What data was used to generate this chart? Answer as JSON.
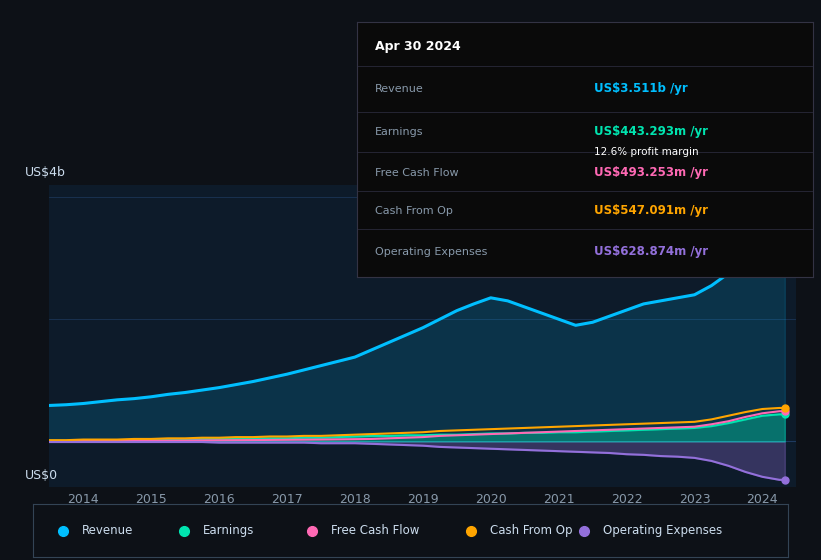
{
  "bg_color": "#0d1117",
  "plot_bg_color": "#0d1b2a",
  "years": [
    2013.33,
    2013.75,
    2014.0,
    2014.25,
    2014.5,
    2014.75,
    2015.0,
    2015.25,
    2015.5,
    2015.75,
    2016.0,
    2016.25,
    2016.5,
    2016.75,
    2017.0,
    2017.25,
    2017.5,
    2017.75,
    2018.0,
    2018.25,
    2018.5,
    2018.75,
    2019.0,
    2019.25,
    2019.5,
    2019.75,
    2020.0,
    2020.25,
    2020.5,
    2020.75,
    2021.0,
    2021.25,
    2021.5,
    2021.75,
    2022.0,
    2022.25,
    2022.5,
    2022.75,
    2023.0,
    2023.25,
    2023.5,
    2023.75,
    2024.0,
    2024.25,
    2024.33
  ],
  "revenue": [
    0.58,
    0.6,
    0.62,
    0.65,
    0.68,
    0.7,
    0.73,
    0.77,
    0.8,
    0.84,
    0.88,
    0.93,
    0.98,
    1.04,
    1.1,
    1.17,
    1.24,
    1.31,
    1.38,
    1.5,
    1.62,
    1.74,
    1.86,
    2.0,
    2.14,
    2.25,
    2.35,
    2.3,
    2.2,
    2.1,
    2.0,
    1.9,
    1.95,
    2.05,
    2.15,
    2.25,
    2.3,
    2.35,
    2.4,
    2.55,
    2.75,
    3.0,
    3.3,
    3.511,
    3.511
  ],
  "earnings": [
    0.01,
    0.01,
    0.02,
    0.02,
    0.02,
    0.02,
    0.03,
    0.03,
    0.03,
    0.04,
    0.04,
    0.04,
    0.05,
    0.05,
    0.05,
    0.06,
    0.06,
    0.07,
    0.08,
    0.09,
    0.09,
    0.1,
    0.1,
    0.11,
    0.11,
    0.12,
    0.13,
    0.13,
    0.14,
    0.14,
    0.15,
    0.15,
    0.16,
    0.17,
    0.18,
    0.19,
    0.2,
    0.21,
    0.22,
    0.25,
    0.3,
    0.36,
    0.42,
    0.4433,
    0.4433
  ],
  "free_cash_flow": [
    0.005,
    0.006,
    0.007,
    0.008,
    0.009,
    0.01,
    0.012,
    0.013,
    0.014,
    0.016,
    0.018,
    0.02,
    0.022,
    0.024,
    0.026,
    0.028,
    0.03,
    0.033,
    0.036,
    0.04,
    0.05,
    0.06,
    0.07,
    0.09,
    0.1,
    0.11,
    0.12,
    0.13,
    0.14,
    0.15,
    0.16,
    0.17,
    0.18,
    0.19,
    0.2,
    0.21,
    0.22,
    0.23,
    0.24,
    0.28,
    0.33,
    0.4,
    0.46,
    0.4933,
    0.4933
  ],
  "cash_from_op": [
    0.02,
    0.02,
    0.03,
    0.03,
    0.03,
    0.04,
    0.04,
    0.05,
    0.05,
    0.06,
    0.06,
    0.07,
    0.07,
    0.08,
    0.08,
    0.09,
    0.09,
    0.1,
    0.11,
    0.12,
    0.13,
    0.14,
    0.15,
    0.17,
    0.18,
    0.19,
    0.2,
    0.21,
    0.22,
    0.23,
    0.24,
    0.25,
    0.26,
    0.27,
    0.28,
    0.29,
    0.3,
    0.31,
    0.32,
    0.36,
    0.42,
    0.48,
    0.53,
    0.5471,
    0.5471
  ],
  "op_expenses": [
    -0.01,
    -0.01,
    -0.01,
    -0.01,
    -0.01,
    -0.01,
    -0.01,
    -0.01,
    -0.01,
    -0.01,
    -0.02,
    -0.02,
    -0.02,
    -0.02,
    -0.02,
    -0.02,
    -0.03,
    -0.03,
    -0.03,
    -0.04,
    -0.05,
    -0.06,
    -0.07,
    -0.09,
    -0.1,
    -0.11,
    -0.12,
    -0.13,
    -0.14,
    -0.15,
    -0.16,
    -0.17,
    -0.18,
    -0.19,
    -0.21,
    -0.22,
    -0.24,
    -0.25,
    -0.27,
    -0.32,
    -0.4,
    -0.5,
    -0.58,
    -0.6289,
    -0.6289
  ],
  "revenue_color": "#00bfff",
  "earnings_color": "#00e5b0",
  "fcf_color": "#ff69b4",
  "cashop_color": "#ffa500",
  "opex_color": "#9370db",
  "grid_color": "#1e3a5f",
  "text_color": "#8899aa",
  "label_color": "#ccddee",
  "tooltip_bg": "#0a0a0a",
  "tooltip_border": "#333344",
  "xlim": [
    2013.5,
    2024.5
  ],
  "ylim": [
    -0.75,
    4.2
  ],
  "y_label": "US$4b",
  "y_zero_label": "US$0",
  "xticks": [
    2014,
    2015,
    2016,
    2017,
    2018,
    2019,
    2020,
    2021,
    2022,
    2023,
    2024
  ],
  "tooltip": {
    "date": "Apr 30 2024",
    "revenue_val": "US$3.511b /yr",
    "earnings_val": "US$443.293m /yr",
    "profit_margin": "12.6% profit margin",
    "fcf_val": "US$493.253m /yr",
    "cashop_val": "US$547.091m /yr",
    "opex_val": "US$628.874m /yr"
  },
  "legend": [
    {
      "label": "Revenue",
      "color": "#00bfff"
    },
    {
      "label": "Earnings",
      "color": "#00e5b0"
    },
    {
      "label": "Free Cash Flow",
      "color": "#ff69b4"
    },
    {
      "label": "Cash From Op",
      "color": "#ffa500"
    },
    {
      "label": "Operating Expenses",
      "color": "#9370db"
    }
  ]
}
